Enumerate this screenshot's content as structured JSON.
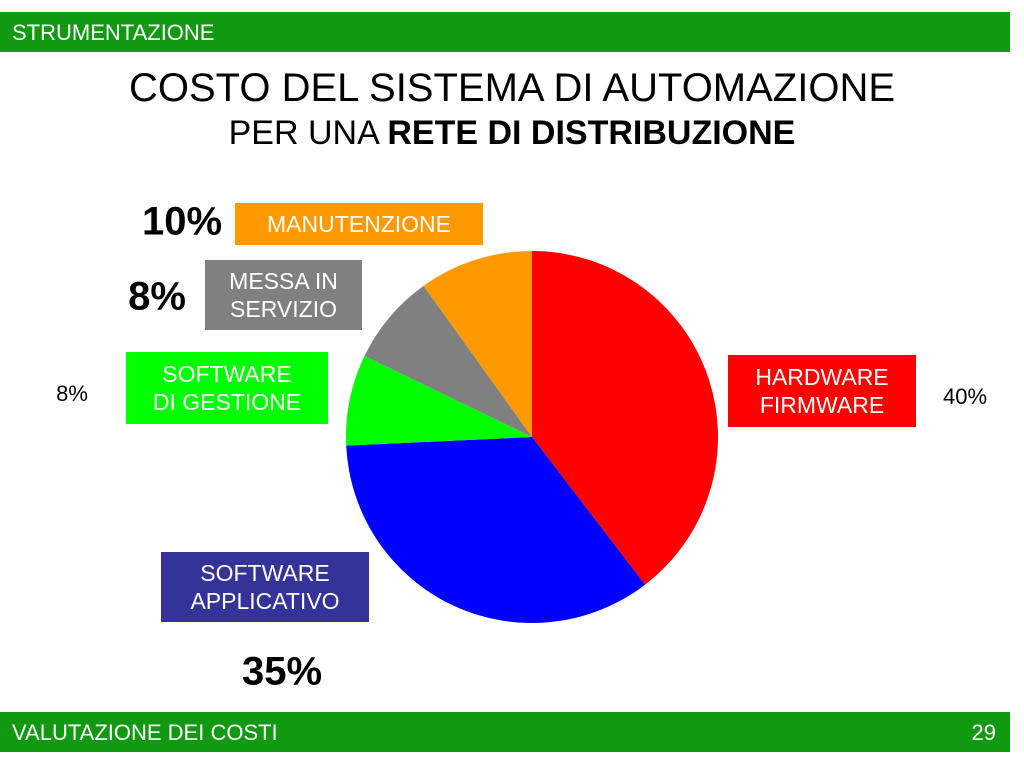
{
  "header": {
    "title": "STRUMENTAZIONE"
  },
  "chart_data": {
    "type": "pie",
    "title": "COSTO DEL SISTEMA DI AUTOMAZIONE",
    "subtitle_parts": [
      "PER UNA",
      "RETE DI DISTRIBUZIONE"
    ],
    "categories": [
      "HARDWARE\nFIRMWARE",
      "SOFTWARE\nAPPLICATIVO",
      "SOFTWARE\nDI GESTIONE",
      "MESSA IN\nSERVIZIO",
      "MANUTENZIONE"
    ],
    "values": [
      40,
      35,
      8,
      8,
      10
    ],
    "value_labels": [
      "40%",
      "35%",
      "8%",
      "8%",
      "10%"
    ],
    "colors": [
      "#ff0000",
      "#0000ff",
      "#00ff00",
      "#808080",
      "#ff9900"
    ],
    "label_colors": [
      "#ff0000",
      "#333399",
      "#00ff00",
      "#808080",
      "#ff9900"
    ]
  },
  "footer": {
    "title": "VALUTAZIONE DEI COSTI",
    "page": "29"
  }
}
